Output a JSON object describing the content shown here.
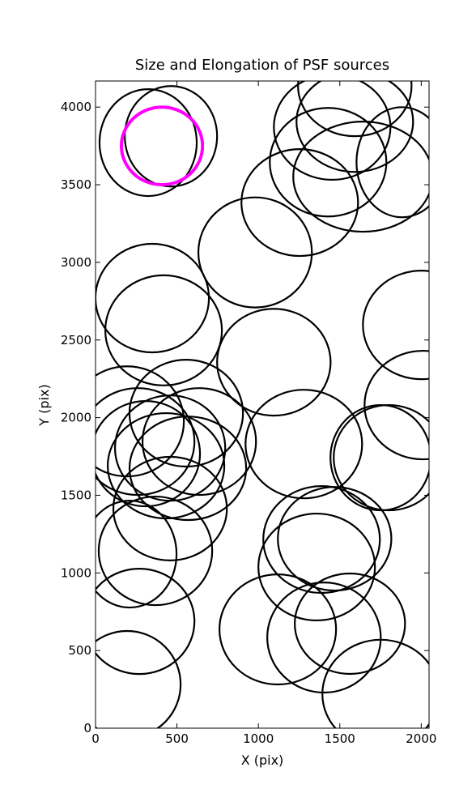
{
  "chart_data": {
    "type": "ellipse",
    "title": "Size and Elongation of PSF sources",
    "xlabel": "X (pix)",
    "ylabel": "Y (pix)",
    "xlim": [
      0,
      2048
    ],
    "ylim": [
      0,
      4168
    ],
    "xticks": [
      0,
      500,
      1000,
      1500,
      2000
    ],
    "yticks": [
      0,
      500,
      1000,
      1500,
      2000,
      2500,
      3000,
      3500,
      4000
    ],
    "series": [
      {
        "color": "#000000",
        "x": [
          323,
          463,
          1592,
          1453,
          1592,
          1428,
          1642,
          1881,
          1254,
          980,
          348,
          418,
          1095,
          2000,
          2010,
          1279,
          557,
          637,
          259,
          308,
          458,
          433,
          567,
          1801,
          1751,
          458,
          368,
          209,
          269,
          194,
          1468,
          1388,
          1358,
          1119,
          1403,
          1562,
          1751,
          194
        ],
        "y": [
          3771,
          3812,
          4136,
          3871,
          3906,
          3645,
          3552,
          3645,
          3385,
          3064,
          2770,
          2562,
          2357,
          2597,
          2081,
          1830,
          2029,
          1846,
          1846,
          1768,
          1804,
          1690,
          1674,
          1742,
          1742,
          1414,
          1142,
          1121,
          688,
          282,
          1220,
          1215,
          1038,
          636,
          584,
          673,
          220,
          1976
        ],
        "width": [
          597,
          567,
          697,
          716,
          716,
          716,
          856,
          557,
          716,
          697,
          697,
          716,
          697,
          716,
          716,
          716,
          697,
          697,
          697,
          667,
          677,
          716,
          716,
          677,
          617,
          697,
          697,
          577,
          677,
          657,
          697,
          716,
          716,
          716,
          697,
          677,
          716,
          697
        ],
        "height": [
          688,
          647,
          647,
          678,
          647,
          699,
          709,
          709,
          688,
          709,
          699,
          709,
          688,
          699,
          699,
          699,
          688,
          688,
          688,
          678,
          678,
          678,
          667,
          678,
          678,
          667,
          699,
          688,
          678,
          688,
          667,
          688,
          688,
          709,
          709,
          647,
          699,
          709
        ]
      },
      {
        "color": "#ff00ff",
        "x": [
          408
        ],
        "y": [
          3750
        ],
        "width": [
          498
        ],
        "height": [
          500
        ]
      }
    ]
  }
}
